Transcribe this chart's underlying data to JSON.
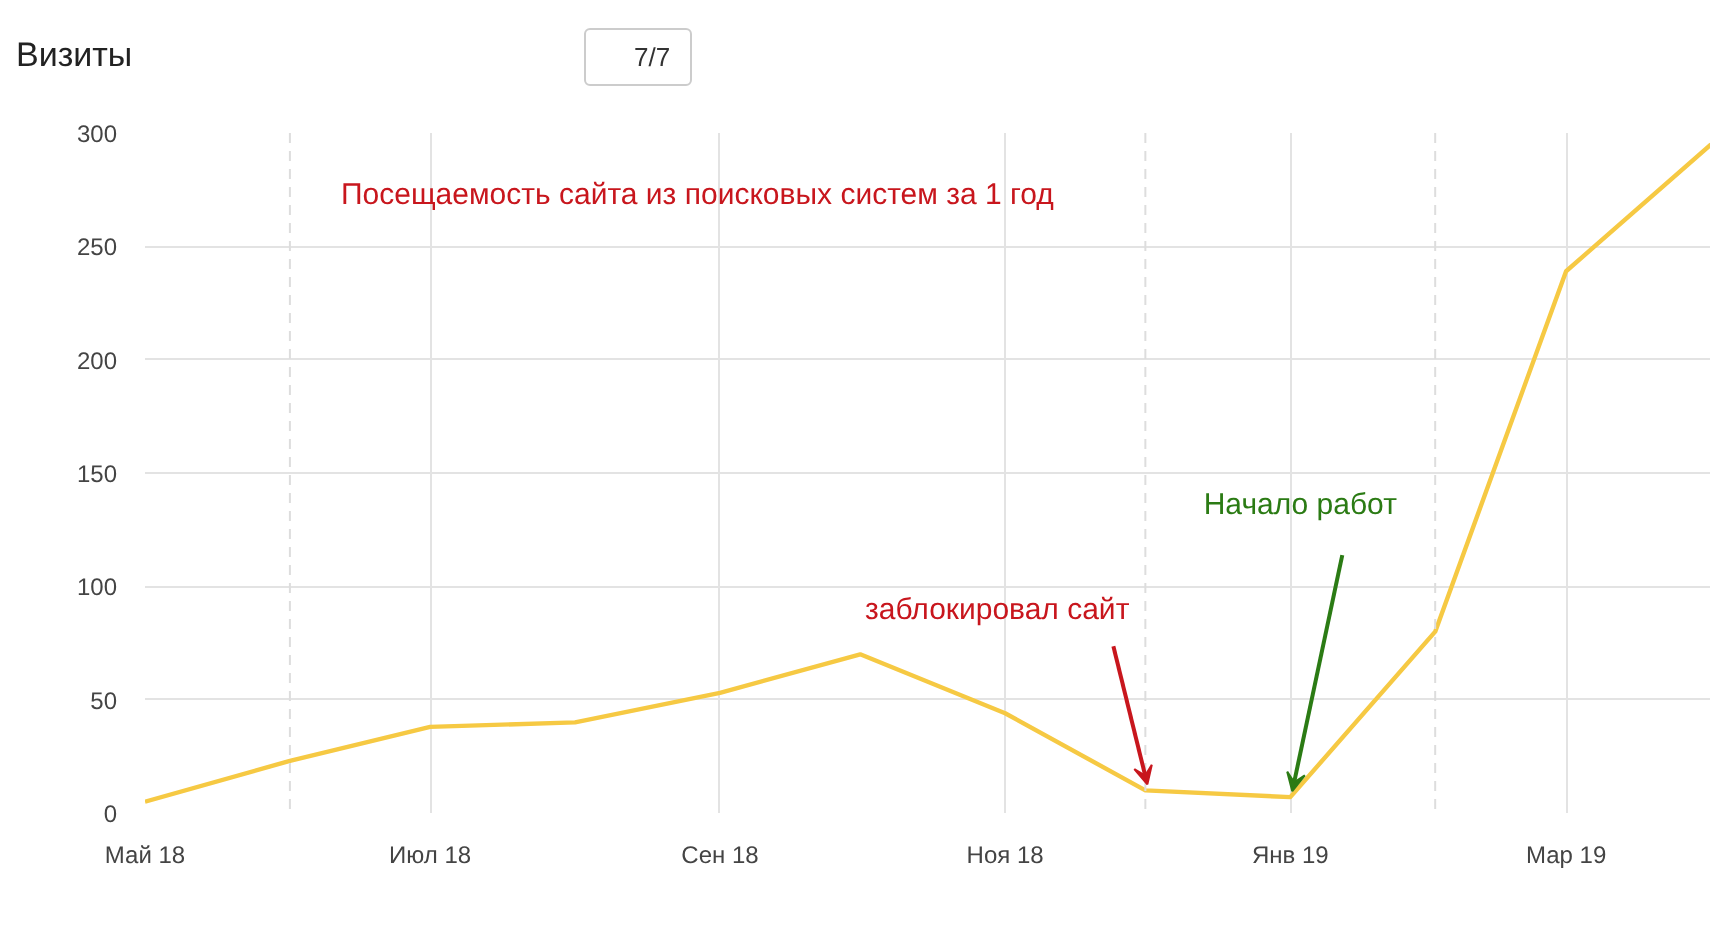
{
  "chart_data": {
    "type": "line",
    "title": "Визиты",
    "x": [
      "2018-05",
      "2018-06",
      "2018-07",
      "2018-08",
      "2018-09",
      "2018-10",
      "2018-11",
      "2018-12",
      "2019-01",
      "2019-02",
      "2019-03",
      "2019-04"
    ],
    "series": [
      {
        "color": "#f6c943",
        "values": [
          5,
          23,
          38,
          40,
          53,
          70,
          44,
          10,
          7,
          80,
          239,
          295
        ]
      }
    ],
    "xlim": [
      "2018-05",
      "2019-04"
    ],
    "xticks": [
      {
        "value": "2018-05",
        "label": "Май 18"
      },
      {
        "value": "2018-07",
        "label": "Июл 18"
      },
      {
        "value": "2018-09",
        "label": "Сен 18"
      },
      {
        "value": "2018-11",
        "label": "Ноя 18"
      },
      {
        "value": "2019-01",
        "label": "Янв 19"
      },
      {
        "value": "2019-03",
        "label": "Мар 19"
      }
    ],
    "ylim": [
      0,
      300
    ],
    "yticks": [
      0,
      50,
      100,
      150,
      200,
      250,
      300
    ],
    "grid": true,
    "marker": "none",
    "line_style": "solid",
    "ref_lines": [
      {
        "axis": "x",
        "value": "2018-06",
        "color": "#dddddd",
        "line_style": "dashed"
      },
      {
        "axis": "x",
        "value": "2018-12",
        "color": "#dddddd",
        "line_style": "dashed"
      },
      {
        "axis": "x",
        "value": "2019-02",
        "color": "#dddddd",
        "line_style": "dashed"
      }
    ],
    "annotations": [
      "Посещаемость сайта из поисковых систем за 1 год",
      {
        "text": "заблокировал сайт",
        "x": "2018-12",
        "y": 10
      },
      {
        "text": "Начало работ",
        "x": "2019-01",
        "y": 7
      },
      "7/7"
    ]
  }
}
